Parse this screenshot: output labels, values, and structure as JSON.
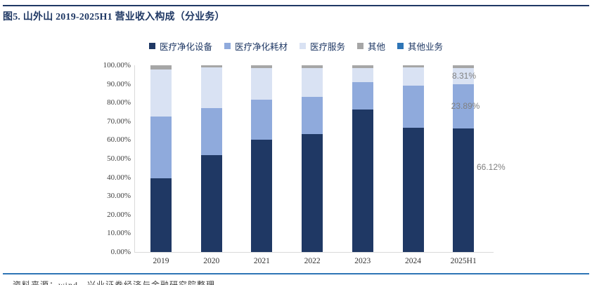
{
  "figure": {
    "title": "图5. 山外山 2019-2025H1 营业收入构成（分业务）",
    "source_note": "资料来源：wind，兴业证券经济与金融研究院整理"
  },
  "colors": {
    "title_navy": "#1F3864",
    "top_rule": "#1F3864",
    "bottom_rule": "#2E75B6",
    "axis_line": "#D9D9D9",
    "tick_text": "#404040",
    "data_label_text": "#808080",
    "legend_text": "#1F3864"
  },
  "chart_data": {
    "type": "bar",
    "stacked": true,
    "unit": "%",
    "title": "图5. 山外山 2019-2025H1 营业收入构成（分业务）",
    "xlabel": "",
    "ylabel": "",
    "ylim": [
      0,
      100
    ],
    "grid": false,
    "legend_position": "top",
    "categories": [
      "2019",
      "2020",
      "2021",
      "2022",
      "2023",
      "2024",
      "2025H1"
    ],
    "y_tick_labels": [
      "0.00%",
      "10.00%",
      "20.00%",
      "30.00%",
      "40.00%",
      "50.00%",
      "60.00%",
      "70.00%",
      "80.00%",
      "90.00%",
      "100.00%"
    ],
    "series": [
      {
        "name": "医疗净化设备",
        "color": "#1F3864",
        "values": [
          39.3,
          51.8,
          60.2,
          63.2,
          76.3,
          66.6,
          66.12
        ]
      },
      {
        "name": "医疗净化耗材",
        "color": "#8FAADC",
        "values": [
          33.2,
          25.3,
          21.4,
          20.0,
          14.8,
          22.5,
          23.89
        ]
      },
      {
        "name": "医疗服务",
        "color": "#D9E2F3",
        "values": [
          25.2,
          21.6,
          17.0,
          15.3,
          7.5,
          9.6,
          8.31
        ]
      },
      {
        "name": "其他",
        "color": "#A6A6A6",
        "values": [
          2.3,
          1.3,
          1.4,
          1.5,
          1.4,
          1.3,
          1.68
        ]
      },
      {
        "name": "其他业务",
        "color": "#2E75B6",
        "values": [
          0,
          0,
          0,
          0,
          0,
          0,
          0
        ]
      }
    ],
    "data_labels": [
      {
        "category": "2025H1",
        "series": "医疗服务",
        "text": "8.31%"
      },
      {
        "category": "2025H1",
        "series": "医疗净化耗材",
        "text": "23.89%"
      },
      {
        "category": "2025H1",
        "series": "医疗净化设备",
        "text": "66.12%"
      }
    ]
  }
}
